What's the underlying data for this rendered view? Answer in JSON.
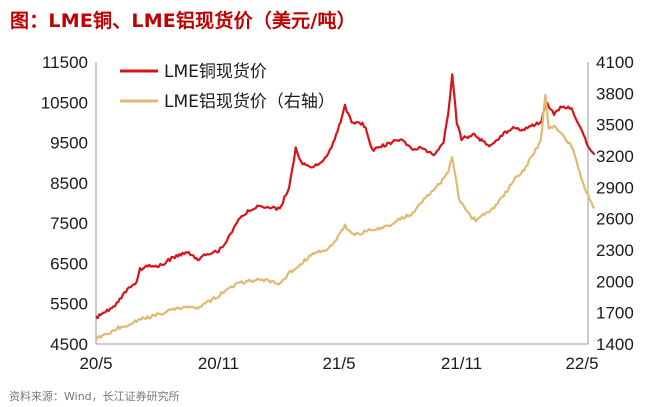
{
  "header": {
    "title": "图：LME铜、LME铝现货价（美元/吨）"
  },
  "footer": {
    "source": "资料来源：Wind，长江证券研究所"
  },
  "chart_data": {
    "type": "line",
    "title": "图：LME铜、LME铝现货价（美元/吨）",
    "x_ticks": [
      "20/5",
      "20/11",
      "21/5",
      "21/11",
      "22/5"
    ],
    "y_left": {
      "min": 4500,
      "max": 11500,
      "ticks": [
        4500,
        5500,
        6500,
        7500,
        8500,
        9500,
        10500,
        11500
      ]
    },
    "y_right": {
      "min": 1400,
      "max": 4100,
      "ticks": [
        1400,
        1700,
        2000,
        2300,
        2600,
        2900,
        3200,
        3500,
        3800,
        4100
      ]
    },
    "grid": false,
    "legend_position": "top-left",
    "series": [
      {
        "name": "LME铜现货价",
        "axis": "left",
        "color": "#d7141a",
        "points": [
          [
            "2020-05-01",
            5150
          ],
          [
            "2020-05-20",
            5350
          ],
          [
            "2020-06-01",
            5500
          ],
          [
            "2020-06-15",
            5800
          ],
          [
            "2020-07-01",
            6050
          ],
          [
            "2020-07-06",
            6350
          ],
          [
            "2020-07-20",
            6450
          ],
          [
            "2020-08-01",
            6400
          ],
          [
            "2020-08-20",
            6600
          ],
          [
            "2020-09-01",
            6700
          ],
          [
            "2020-09-15",
            6800
          ],
          [
            "2020-10-01",
            6600
          ],
          [
            "2020-10-15",
            6750
          ],
          [
            "2020-11-01",
            6800
          ],
          [
            "2020-11-15",
            7100
          ],
          [
            "2020-12-01",
            7600
          ],
          [
            "2020-12-15",
            7800
          ],
          [
            "2021-01-01",
            7950
          ],
          [
            "2021-01-15",
            7900
          ],
          [
            "2021-02-01",
            7850
          ],
          [
            "2021-02-15",
            8400
          ],
          [
            "2021-02-25",
            9350
          ],
          [
            "2021-03-05",
            9000
          ],
          [
            "2021-03-20",
            8900
          ],
          [
            "2021-04-01",
            8950
          ],
          [
            "2021-04-15",
            9200
          ],
          [
            "2021-04-29",
            9800
          ],
          [
            "2021-05-10",
            10400
          ],
          [
            "2021-05-20",
            10000
          ],
          [
            "2021-06-01",
            10000
          ],
          [
            "2021-06-10",
            9900
          ],
          [
            "2021-06-20",
            9300
          ],
          [
            "2021-07-01",
            9400
          ],
          [
            "2021-07-20",
            9500
          ],
          [
            "2021-08-01",
            9600
          ],
          [
            "2021-08-20",
            9300
          ],
          [
            "2021-09-01",
            9400
          ],
          [
            "2021-09-20",
            9200
          ],
          [
            "2021-10-05",
            9500
          ],
          [
            "2021-10-12",
            10200
          ],
          [
            "2021-10-18",
            11200
          ],
          [
            "2021-10-25",
            10000
          ],
          [
            "2021-11-01",
            9600
          ],
          [
            "2021-11-20",
            9700
          ],
          [
            "2021-12-01",
            9550
          ],
          [
            "2021-12-15",
            9400
          ],
          [
            "2022-01-01",
            9700
          ],
          [
            "2022-01-20",
            9900
          ],
          [
            "2022-02-01",
            9800
          ],
          [
            "2022-02-20",
            9950
          ],
          [
            "2022-03-01",
            10000
          ],
          [
            "2022-03-08",
            10500
          ],
          [
            "2022-03-20",
            10200
          ],
          [
            "2022-04-01",
            10400
          ],
          [
            "2022-04-15",
            10350
          ],
          [
            "2022-05-01",
            9800
          ],
          [
            "2022-05-10",
            9400
          ],
          [
            "2022-05-20",
            9200
          ]
        ]
      },
      {
        "name": "LME铝现货价（右轴）",
        "axis": "right",
        "color": "#e2b971",
        "points": [
          [
            "2020-05-01",
            1450
          ],
          [
            "2020-05-20",
            1500
          ],
          [
            "2020-06-01",
            1550
          ],
          [
            "2020-06-15",
            1580
          ],
          [
            "2020-07-01",
            1620
          ],
          [
            "2020-07-15",
            1650
          ],
          [
            "2020-08-01",
            1680
          ],
          [
            "2020-08-20",
            1720
          ],
          [
            "2020-09-01",
            1740
          ],
          [
            "2020-09-20",
            1760
          ],
          [
            "2020-10-01",
            1750
          ],
          [
            "2020-10-15",
            1800
          ],
          [
            "2020-11-01",
            1860
          ],
          [
            "2020-11-15",
            1920
          ],
          [
            "2020-12-01",
            1980
          ],
          [
            "2020-12-15",
            2000
          ],
          [
            "2021-01-01",
            2020
          ],
          [
            "2021-01-20",
            2000
          ],
          [
            "2021-02-01",
            1970
          ],
          [
            "2021-02-15",
            2080
          ],
          [
            "2021-03-01",
            2150
          ],
          [
            "2021-03-20",
            2250
          ],
          [
            "2021-04-01",
            2280
          ],
          [
            "2021-04-20",
            2330
          ],
          [
            "2021-05-10",
            2530
          ],
          [
            "2021-05-20",
            2450
          ],
          [
            "2021-06-01",
            2450
          ],
          [
            "2021-06-15",
            2500
          ],
          [
            "2021-07-01",
            2500
          ],
          [
            "2021-07-20",
            2550
          ],
          [
            "2021-08-01",
            2600
          ],
          [
            "2021-08-20",
            2650
          ],
          [
            "2021-09-01",
            2750
          ],
          [
            "2021-09-15",
            2850
          ],
          [
            "2021-10-01",
            2950
          ],
          [
            "2021-10-12",
            3050
          ],
          [
            "2021-10-18",
            3200
          ],
          [
            "2021-10-28",
            2800
          ],
          [
            "2021-11-05",
            2700
          ],
          [
            "2021-11-15",
            2620
          ],
          [
            "2021-11-25",
            2580
          ],
          [
            "2021-12-05",
            2650
          ],
          [
            "2021-12-20",
            2700
          ],
          [
            "2022-01-01",
            2800
          ],
          [
            "2022-01-20",
            2980
          ],
          [
            "2022-02-01",
            3050
          ],
          [
            "2022-02-15",
            3200
          ],
          [
            "2022-02-28",
            3350
          ],
          [
            "2022-03-07",
            3780
          ],
          [
            "2022-03-12",
            3450
          ],
          [
            "2022-03-20",
            3500
          ],
          [
            "2022-04-01",
            3400
          ],
          [
            "2022-04-15",
            3300
          ],
          [
            "2022-04-25",
            3100
          ],
          [
            "2022-05-05",
            2900
          ],
          [
            "2022-05-15",
            2750
          ],
          [
            "2022-05-20",
            2700
          ]
        ]
      }
    ]
  }
}
